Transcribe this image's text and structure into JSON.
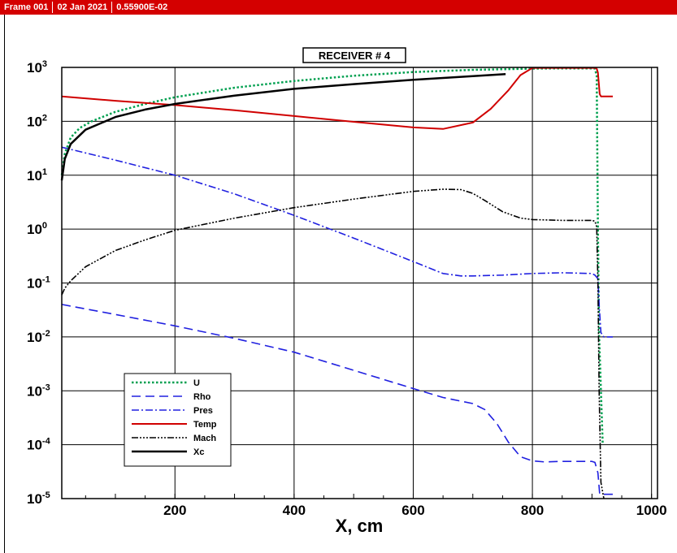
{
  "header": {
    "frame": "Frame 001",
    "date": "02 Jan 2021",
    "value": "0.55900E-02"
  },
  "colors": {
    "header_bg": "#d40000",
    "U": "#00a050",
    "Rho": "#2020e0",
    "Pres": "#2020e0",
    "Temp": "#d00000",
    "Mach": "#000000",
    "Xc": "#000000"
  },
  "chart_data": {
    "type": "line",
    "title": "RECEIVER # 4",
    "xlabel": "X, cm",
    "ylabel": "",
    "xlim": [
      10,
      1010
    ],
    "ylim": [
      1e-05,
      1000
    ],
    "yscale": "log",
    "grid": true,
    "legend_position": "lower-left",
    "x_ticks": [
      200,
      400,
      600,
      800,
      1000
    ],
    "y_ticks": [
      {
        "base": "10",
        "exp": "3",
        "value": 1000
      },
      {
        "base": "10",
        "exp": "2",
        "value": 100
      },
      {
        "base": "10",
        "exp": "1",
        "value": 10
      },
      {
        "base": "10",
        "exp": "0",
        "value": 1
      },
      {
        "base": "10",
        "exp": "-1",
        "value": 0.1
      },
      {
        "base": "10",
        "exp": "-2",
        "value": 0.01
      },
      {
        "base": "10",
        "exp": "-3",
        "value": 0.001
      },
      {
        "base": "10",
        "exp": "-4",
        "value": 0.0001
      },
      {
        "base": "10",
        "exp": "-5",
        "value": 1e-05
      }
    ],
    "series": [
      {
        "name": "U",
        "x": [
          10,
          15,
          25,
          40,
          60,
          100,
          150,
          200,
          300,
          400,
          500,
          600,
          700,
          800,
          850,
          900,
          905,
          908,
          910,
          912,
          915,
          918
        ],
        "y": [
          10,
          25,
          50,
          75,
          100,
          150,
          210,
          280,
          420,
          560,
          700,
          820,
          900,
          950,
          960,
          960,
          950,
          700,
          1,
          0.01,
          0.001,
          0.0001
        ]
      },
      {
        "name": "Rho",
        "x": [
          10,
          100,
          200,
          300,
          400,
          500,
          600,
          650,
          700,
          720,
          740,
          760,
          780,
          800,
          820,
          850,
          900,
          905,
          910,
          913,
          915,
          920,
          935
        ],
        "y": [
          0.04,
          0.026,
          0.016,
          0.0094,
          0.0052,
          0.0024,
          0.0011,
          0.00075,
          0.00058,
          0.00045,
          0.00025,
          0.00011,
          6e-05,
          5e-05,
          4.8e-05,
          4.9e-05,
          4.9e-05,
          4.7e-05,
          3e-05,
          1.2e-05,
          1.2e-05,
          1.2e-05,
          1.2e-05
        ]
      },
      {
        "name": "Pres",
        "x": [
          10,
          100,
          200,
          300,
          400,
          500,
          600,
          650,
          680,
          700,
          750,
          800,
          850,
          900,
          905,
          910,
          912,
          915,
          920,
          935
        ],
        "y": [
          33,
          19,
          10,
          4.5,
          1.8,
          0.68,
          0.25,
          0.15,
          0.135,
          0.135,
          0.14,
          0.15,
          0.155,
          0.15,
          0.14,
          0.12,
          0.04,
          0.012,
          0.01,
          0.01
        ]
      },
      {
        "name": "Temp",
        "x": [
          10,
          100,
          200,
          300,
          400,
          500,
          600,
          650,
          700,
          730,
          760,
          780,
          800,
          850,
          900,
          905,
          908,
          910,
          913,
          915,
          920,
          935
        ],
        "y": [
          290,
          240,
          200,
          160,
          125,
          98,
          77,
          72,
          95,
          170,
          380,
          720,
          980,
          980,
          980,
          980,
          950,
          800,
          320,
          290,
          290,
          290
        ]
      },
      {
        "name": "Mach",
        "x": [
          10,
          15,
          25,
          50,
          100,
          150,
          200,
          300,
          400,
          500,
          600,
          650,
          680,
          700,
          720,
          750,
          780,
          800,
          850,
          900,
          905,
          908,
          910,
          912,
          915,
          920
        ],
        "y": [
          0.06,
          0.08,
          0.11,
          0.2,
          0.4,
          0.63,
          0.95,
          1.6,
          2.5,
          3.6,
          5,
          5.5,
          5.4,
          4.6,
          3.4,
          2.1,
          1.6,
          1.5,
          1.45,
          1.45,
          1.4,
          1.1,
          0.1,
          0.001,
          2e-05,
          1e-05
        ]
      },
      {
        "name": "Xc",
        "x": [
          10,
          15,
          25,
          50,
          100,
          150,
          200,
          300,
          400,
          500,
          600,
          700,
          755
        ],
        "y": [
          8,
          20,
          38,
          70,
          120,
          165,
          210,
          300,
          400,
          490,
          590,
          690,
          750
        ]
      }
    ]
  }
}
